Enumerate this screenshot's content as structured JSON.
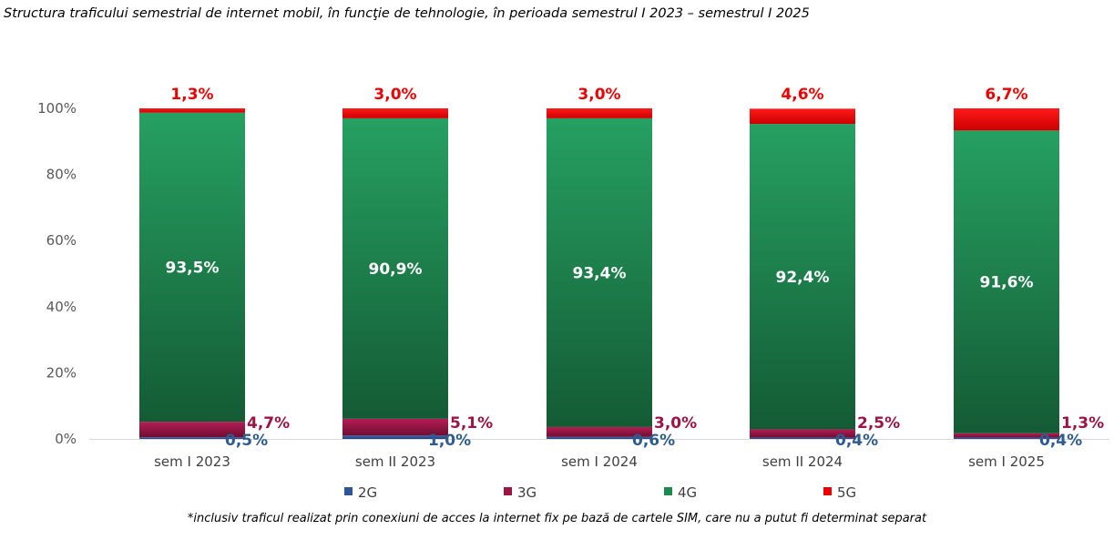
{
  "chart_data": {
    "type": "bar",
    "stacked": true,
    "title": "Structura traficului semestrial de internet mobil, în funcţie de tehnologie, în perioada semestrul I 2023 – semestrul I 2025",
    "footnote": "*inclusiv traficul realizat prin conexiuni de acces la internet fix pe bază de cartele SIM, care nu a putut fi determinat separat",
    "categories": [
      "sem I 2023",
      "sem II 2023",
      "sem I 2024",
      "sem II 2024",
      "sem I 2025"
    ],
    "ylim": [
      0,
      100
    ],
    "y_ticks": [
      "0%",
      "20%",
      "40%",
      "60%",
      "80%",
      "100%"
    ],
    "y_tick_values": [
      0,
      20,
      40,
      60,
      80,
      100
    ],
    "grid": false,
    "legend_position": "bottom",
    "series": [
      {
        "name": "2G",
        "color": "#2e5597",
        "label_color": "#2e5c8f",
        "values": [
          0.5,
          1.0,
          0.6,
          0.4,
          0.4
        ],
        "labels": [
          "0,5%",
          "1,0%",
          "0,6%",
          "0,4%",
          "0,4%"
        ]
      },
      {
        "name": "3G",
        "color": "#9c1446",
        "label_color": "#9c1446",
        "values": [
          4.7,
          5.1,
          3.0,
          2.5,
          1.3
        ],
        "labels": [
          "4,7%",
          "5,1%",
          "3,0%",
          "2,5%",
          "1,3%"
        ]
      },
      {
        "name": "4G",
        "color": "#1f8a4f",
        "label_color": "#ffffff",
        "values": [
          93.5,
          90.9,
          93.4,
          92.4,
          91.6
        ],
        "labels": [
          "93,5%",
          "90,9%",
          "93,4%",
          "92,4%",
          "91,6%"
        ]
      },
      {
        "name": "5G",
        "color": "#ee0000",
        "label_color": "#ee0000",
        "values": [
          1.3,
          3.0,
          3.0,
          4.6,
          6.7
        ],
        "labels": [
          "1,3%",
          "3,0%",
          "3,0%",
          "4,6%",
          "6,7%"
        ]
      }
    ]
  }
}
